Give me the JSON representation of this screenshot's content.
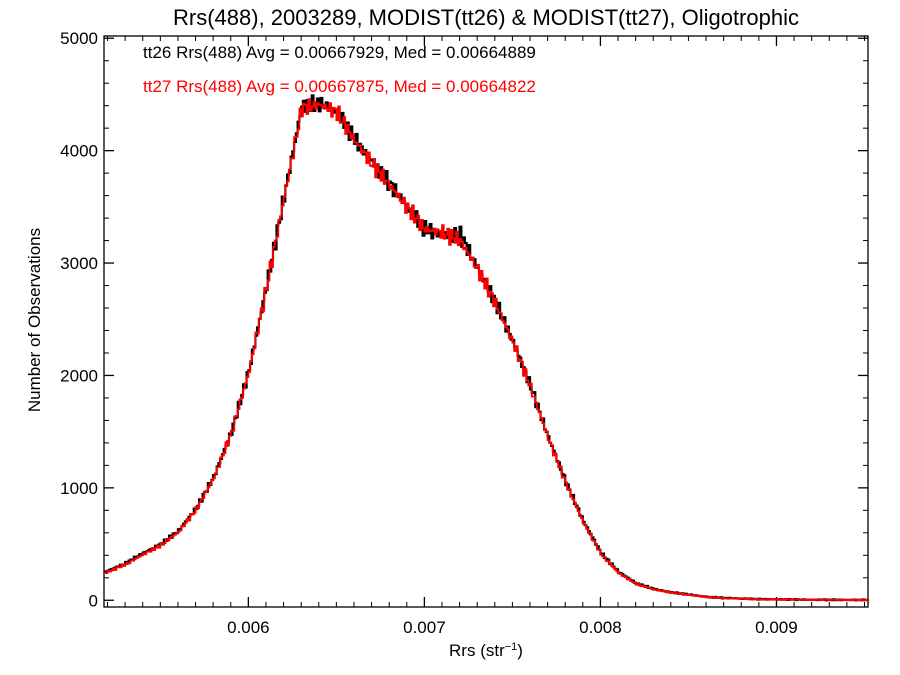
{
  "chart_data": {
    "type": "line",
    "title": "Rrs(488), 2003289, MODIST(tt26) & MODIST(tt27), Oligotrophic",
    "xlabel_base": "Rrs (str",
    "xlabel_sup": "−1",
    "xlabel_close": ")",
    "ylabel": "Number of Observations",
    "xlim": [
      0.00518,
      0.00952
    ],
    "ylim": [
      -60,
      5020
    ],
    "xticks": [
      {
        "value": 0.006,
        "label": "0.006"
      },
      {
        "value": 0.007,
        "label": "0.007"
      },
      {
        "value": 0.008,
        "label": "0.008"
      },
      {
        "value": 0.009,
        "label": "0.009"
      }
    ],
    "yticks": [
      {
        "value": 0,
        "label": "0"
      },
      {
        "value": 1000,
        "label": "1000"
      },
      {
        "value": 2000,
        "label": "2000"
      },
      {
        "value": 3000,
        "label": "3000"
      },
      {
        "value": 4000,
        "label": "4000"
      },
      {
        "value": 5000,
        "label": "5000"
      }
    ],
    "legend_placement": "top-left",
    "legend": [
      "tt26 Rrs(488) Avg = 0.00667929, Med = 0.00664889",
      "tt27 Rrs(488) Avg = 0.00667875, Med = 0.00664822"
    ],
    "series": [
      {
        "color": "#000000",
        "x": [
          0.00518,
          0.0053,
          0.0054,
          0.0055,
          0.0056,
          0.0057,
          0.0058,
          0.0059,
          0.006,
          0.0061,
          0.0062,
          0.0063,
          0.0064,
          0.0065,
          0.0066,
          0.0067,
          0.0068,
          0.0069,
          0.007,
          0.0071,
          0.0072,
          0.0073,
          0.0074,
          0.0075,
          0.0076,
          0.0077,
          0.0078,
          0.0079,
          0.008,
          0.0081,
          0.0082,
          0.0083,
          0.0084,
          0.0085,
          0.0086,
          0.0087,
          0.0088,
          0.0089,
          0.009,
          0.0092,
          0.0094,
          0.00952
        ],
        "y": [
          250,
          330,
          420,
          500,
          620,
          820,
          1100,
          1500,
          2050,
          2800,
          3600,
          4400,
          4420,
          4350,
          4100,
          3900,
          3700,
          3500,
          3300,
          3250,
          3250,
          2950,
          2650,
          2300,
          1900,
          1450,
          1050,
          700,
          420,
          250,
          150,
          100,
          70,
          50,
          30,
          20,
          15,
          10,
          8,
          5,
          3,
          3
        ]
      },
      {
        "color": "#ff0000",
        "x": [
          0.00518,
          0.0053,
          0.0054,
          0.0055,
          0.0056,
          0.0057,
          0.0058,
          0.0059,
          0.006,
          0.0061,
          0.0062,
          0.0063,
          0.0064,
          0.0065,
          0.0066,
          0.0067,
          0.0068,
          0.0069,
          0.007,
          0.0071,
          0.0072,
          0.0073,
          0.0074,
          0.0075,
          0.0076,
          0.0077,
          0.0078,
          0.0079,
          0.008,
          0.0081,
          0.0082,
          0.0083,
          0.0084,
          0.0085,
          0.0086,
          0.0087,
          0.0088,
          0.0089,
          0.009,
          0.0092,
          0.0094,
          0.00952
        ],
        "y": [
          240,
          320,
          410,
          490,
          610,
          810,
          1090,
          1490,
          2040,
          2790,
          3590,
          4380,
          4410,
          4340,
          4090,
          3880,
          3690,
          3490,
          3300,
          3270,
          3200,
          2940,
          2640,
          2290,
          1890,
          1440,
          1040,
          690,
          410,
          240,
          145,
          95,
          68,
          48,
          28,
          18,
          14,
          9,
          7,
          5,
          3,
          3
        ]
      }
    ]
  }
}
